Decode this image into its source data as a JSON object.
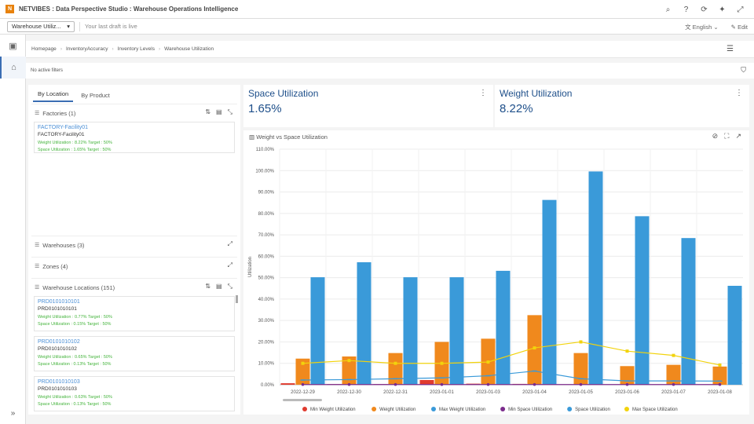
{
  "app": {
    "title": "NETVIBES : Data Perspective Studio : Warehouse Operations Intelligence",
    "logo_letter": "N"
  },
  "topbar": {
    "icons": [
      "search-icon",
      "help-icon",
      "refresh-icon",
      "pin-icon",
      "expand-icon"
    ],
    "glyphs": [
      "⌕",
      "?",
      "⟳",
      "✦",
      "⤢"
    ]
  },
  "subbar": {
    "app_select": "Warehouse Utiliz...",
    "draft": "Your last draft is live",
    "language": "English",
    "edit": "Edit"
  },
  "breadcrumb": [
    "Homepage",
    "InventoryAccuracy",
    "Inventory Levels",
    "Warehouse Utilization"
  ],
  "filters": {
    "text": "No active filters"
  },
  "left": {
    "tabs": [
      "By Location",
      "By Product"
    ],
    "factories": {
      "title": "Factories (1)",
      "items": [
        {
          "link": "FACTORY-Facility01",
          "name": "FACTORY-Facility01",
          "weight": "Weight Utilization : 8.22% Target : 50%",
          "space": "Space Utilization : 1.65% Target : 50%"
        }
      ]
    },
    "warehouses": {
      "title": "Warehouses (3)"
    },
    "zones": {
      "title": "Zones (4)"
    },
    "locations": {
      "title": "Warehouse Locations (151)",
      "items": [
        {
          "link": "PRD0101010101",
          "name": "PRD0101010101",
          "weight": "Weight Utilization : 0.77% Target : 50%",
          "space": "Space Utilization : 0.15% Target : 50%"
        },
        {
          "link": "PRD0101010102",
          "name": "PRD0101010102",
          "weight": "Weight Utilization : 0.65% Target : 50%",
          "space": "Space Utilization : 0.13% Target : 50%"
        },
        {
          "link": "PRD0101010103",
          "name": "PRD0101010103",
          "weight": "Weight Utilization : 0.63% Target : 50%",
          "space": "Space Utilization : 0.13% Target : 50%"
        }
      ]
    }
  },
  "kpis": [
    {
      "label": "Space Utilization",
      "value": "1.65%"
    },
    {
      "label": "Weight Utilization",
      "value": "8.22%"
    }
  ],
  "chart_panel": {
    "title": "Weight vs Space Utilization"
  },
  "chart_data": {
    "type": "bar",
    "title": "Weight vs Space Utilization",
    "ylabel": "Utilization",
    "xlabel": "",
    "ylim": [
      0,
      110
    ],
    "yticks": [
      "0.00%",
      "10.00%",
      "20.00%",
      "30.00%",
      "40.00%",
      "50.00%",
      "60.00%",
      "70.00%",
      "80.00%",
      "90.00%",
      "100.00%",
      "110.00%"
    ],
    "categories": [
      "2022-12-29",
      "2022-12-30",
      "2022-12-31",
      "2023-01-01",
      "2023-01-03",
      "2023-01-04",
      "2023-01-05",
      "2023-01-06",
      "2023-01-07",
      "2023-01-08"
    ],
    "series": [
      {
        "name": "Min Weight Utilization",
        "kind": "bar",
        "color": "#e03b2f",
        "values": [
          0.7,
          0.3,
          0.3,
          2.2,
          0.5,
          0.4,
          0.2,
          0.2,
          0.2,
          0.2
        ]
      },
      {
        "name": "Weight Utilization",
        "kind": "bar",
        "color": "#f0891d",
        "values": [
          12.2,
          13.2,
          14.8,
          20.0,
          21.5,
          32.5,
          14.8,
          8.7,
          9.3,
          8.5
        ]
      },
      {
        "name": "Max Weight Utilization",
        "kind": "bar",
        "color": "#3a9ad9",
        "values": [
          50.2,
          57.2,
          50.2,
          50.2,
          53.2,
          86.3,
          99.6,
          78.7,
          68.5,
          46.2
        ]
      },
      {
        "name": "Min Space Utilization",
        "kind": "line",
        "color": "#7b2c8c",
        "values": [
          0.1,
          0.1,
          0.1,
          0.1,
          0.1,
          0.1,
          0.1,
          0.1,
          0.1,
          0.1
        ]
      },
      {
        "name": "Space Utilization",
        "kind": "line",
        "color": "#3a9ad9",
        "values": [
          2.2,
          2.4,
          2.8,
          3.2,
          4.2,
          6.4,
          2.8,
          1.8,
          1.8,
          1.7
        ]
      },
      {
        "name": "Max Space Utilization",
        "kind": "line",
        "color": "#f2d30c",
        "values": [
          10.0,
          11.3,
          10.0,
          10.0,
          10.6,
          17.2,
          20.0,
          15.7,
          13.7,
          9.2
        ]
      }
    ]
  }
}
